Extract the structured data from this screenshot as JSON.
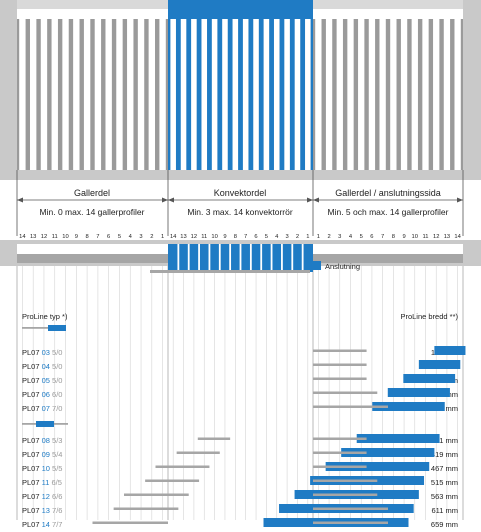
{
  "sections": [
    {
      "title": "Gallerdel",
      "subtitle": "Min. 0 max. 14 gallerprofiler"
    },
    {
      "title": "Konvektordel",
      "subtitle": "Min. 3 max. 14 konvektorrör"
    },
    {
      "title": "Gallerdel / anslutningssida",
      "subtitle": "Min. 5 och max. 14 gallerprofiler"
    }
  ],
  "tick_numbers": {
    "left": [
      "14",
      "13",
      "12",
      "11",
      "10",
      "9",
      "8",
      "7",
      "6",
      "5",
      "4",
      "3",
      "2",
      "1"
    ],
    "middle": [
      "14",
      "13",
      "12",
      "11",
      "10",
      "9",
      "8",
      "7",
      "6",
      "5",
      "4",
      "3",
      "2",
      "1"
    ],
    "right": [
      "1",
      "2",
      "3",
      "4",
      "5",
      "6",
      "7",
      "8",
      "9",
      "10",
      "11",
      "12",
      "13",
      "14"
    ]
  },
  "connection_label": "Anslutning",
  "table": {
    "type_header": "ProLine typ *)",
    "width_header": "ProLine bredd **)"
  },
  "rows": [
    {
      "prefix": "PL07 ",
      "code": "03",
      "ratio": " 5/0",
      "width": "179 mm",
      "left_grey": 0,
      "blue": 3,
      "right_grey": 5
    },
    {
      "prefix": "PL07 ",
      "code": "04",
      "ratio": " 5/0",
      "width": "203 mm",
      "left_grey": 0,
      "blue": 4,
      "right_grey": 5
    },
    {
      "prefix": "PL07 ",
      "code": "05",
      "ratio": " 5/0",
      "width": "227 mm",
      "left_grey": 0,
      "blue": 5,
      "right_grey": 5
    },
    {
      "prefix": "PL07 ",
      "code": "06",
      "ratio": " 6/0",
      "width": "275 mm",
      "left_grey": 0,
      "blue": 6,
      "right_grey": 6
    },
    {
      "prefix": "PL07 ",
      "code": "07",
      "ratio": " 7/0",
      "width": "323 mm",
      "left_grey": 0,
      "blue": 7,
      "right_grey": 7
    },
    {
      "prefix": "PL07 ",
      "code": "08",
      "ratio": " 5/3",
      "width": "371 mm",
      "left_grey": 3,
      "blue": 8,
      "right_grey": 5
    },
    {
      "prefix": "PL07 ",
      "code": "09",
      "ratio": " 5/4",
      "width": "419 mm",
      "left_grey": 4,
      "blue": 9,
      "right_grey": 5
    },
    {
      "prefix": "PL07 ",
      "code": "10",
      "ratio": " 5/5",
      "width": "467 mm",
      "left_grey": 5,
      "blue": 10,
      "right_grey": 5
    },
    {
      "prefix": "PL07 ",
      "code": "11",
      "ratio": " 6/5",
      "width": "515 mm",
      "left_grey": 5,
      "blue": 11,
      "right_grey": 6
    },
    {
      "prefix": "PL07 ",
      "code": "12",
      "ratio": " 6/6",
      "width": "563 mm",
      "left_grey": 6,
      "blue": 12,
      "right_grey": 6
    },
    {
      "prefix": "PL07 ",
      "code": "13",
      "ratio": " 7/6",
      "width": "611 mm",
      "left_grey": 6,
      "blue": 13,
      "right_grey": 7
    },
    {
      "prefix": "PL07 ",
      "code": "14",
      "ratio": " 7/7",
      "width": "659 mm",
      "left_grey": 7,
      "blue": 14,
      "right_grey": 7
    }
  ],
  "colors": {
    "blue": "#1f7bc4",
    "grey_bar": "#a6a6a6",
    "frame": "#c8c8c8"
  }
}
